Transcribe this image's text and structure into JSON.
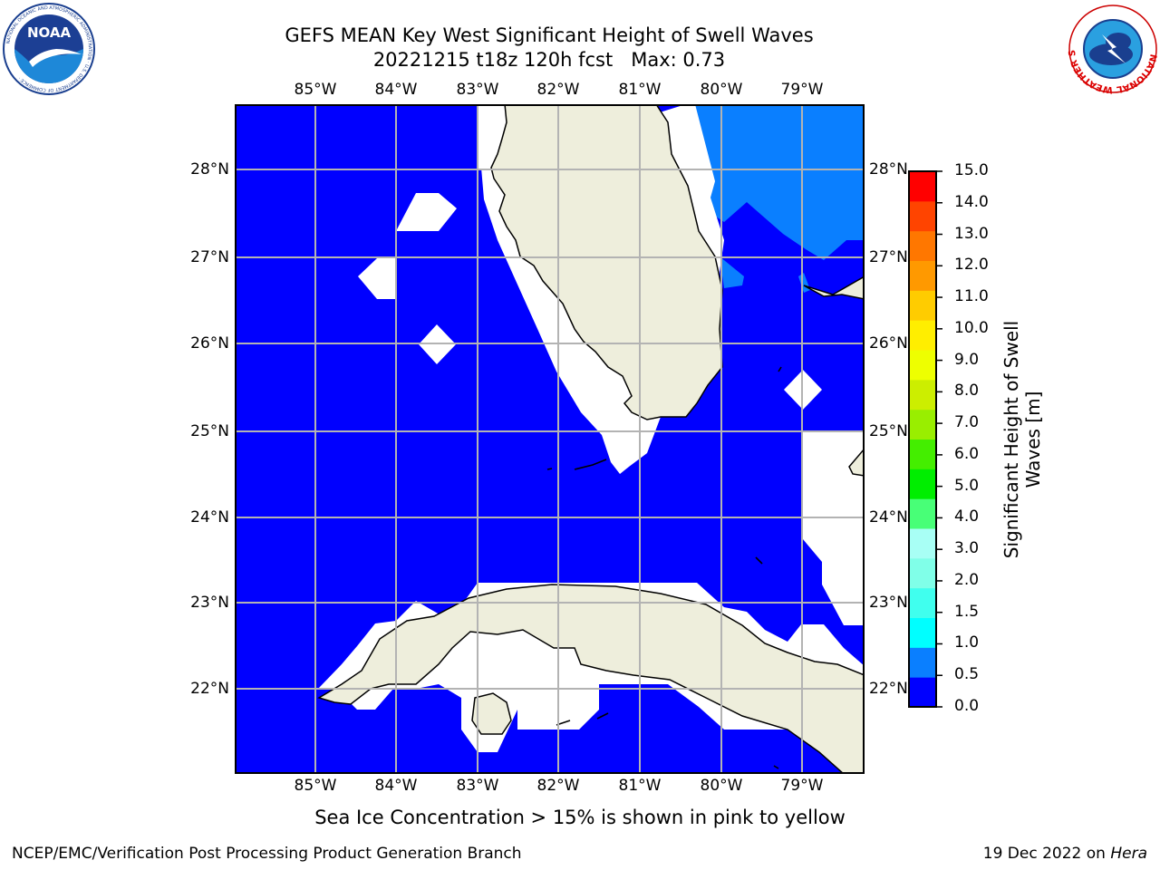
{
  "title_line1": "GEFS MEAN Key West Significant Height of Swell Waves",
  "title_line2": "20221215 t18z 120h fcst   Max: 0.73",
  "map": {
    "lon_labels": [
      "85°W",
      "84°W",
      "83°W",
      "82°W",
      "81°W",
      "80°W",
      "79°W"
    ],
    "lat_labels": [
      "28°N",
      "27°N",
      "26°N",
      "25°N",
      "24°N",
      "23°N",
      "22°N"
    ],
    "colors": {
      "ocean_low": "#0000ff",
      "ocean_mid": "#0a7fff",
      "land": "#eeeedc",
      "grid": "#b3b3b3",
      "coast": "#000000",
      "mask": "#ffffff"
    }
  },
  "colorbar": {
    "label_line1": "Significant Height of Swell",
    "label_line2": "Waves [m]",
    "ticks": [
      "15.0",
      "14.0",
      "13.0",
      "12.0",
      "11.0",
      "10.0",
      "9.0",
      "8.0",
      "7.0",
      "6.0",
      "5.0",
      "4.0",
      "3.0",
      "2.0",
      "1.5",
      "1.0",
      "0.5",
      "0.0"
    ],
    "colors_bottom_to_top": [
      "#0000ff",
      "#0a7fff",
      "#00ffff",
      "#40ffee",
      "#80ffe8",
      "#a8fff5",
      "#48ff77",
      "#00ee00",
      "#44ee00",
      "#99ee00",
      "#ccee00",
      "#eeff00",
      "#ffee00",
      "#ffcc00",
      "#ff9900",
      "#ff7700",
      "#ff4400",
      "#ff0000"
    ]
  },
  "logos": {
    "noaa_text": "NOAA",
    "nws_text": "NATIONAL WEATHER SERVICE"
  },
  "footer": {
    "ice_note": "Sea Ice Concentration > 15% is shown in pink to yellow",
    "credit": "NCEP/EMC/Verification Post Processing Product Generation Branch",
    "date_prefix": "19 Dec 2022 on ",
    "host": "Hera"
  }
}
